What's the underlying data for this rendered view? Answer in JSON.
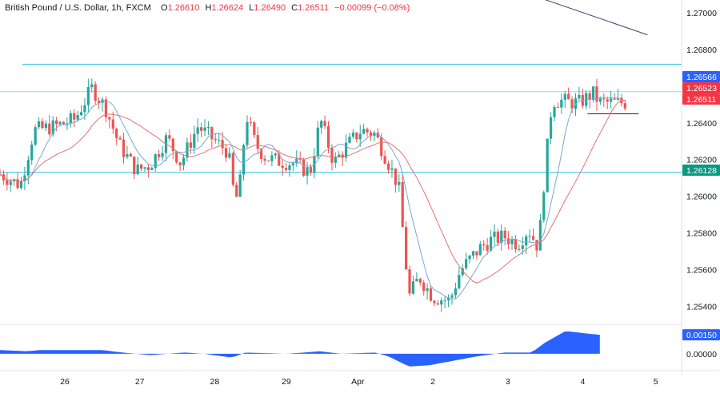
{
  "header": {
    "symbol_line": "British Pound / U.S. Dollar, 1h, FXCM",
    "open_label": "O",
    "open": "1.26610",
    "high_label": "H",
    "high": "1.26624",
    "low_label": "L",
    "low": "1.26490",
    "close_label": "C",
    "close": "1.26511",
    "change": "−0.00099 (−0.08%)"
  },
  "colors": {
    "up": "#26a69a",
    "down": "#ef5350",
    "ma_fast": "#7ea6d9",
    "ma_slow": "#e57373",
    "level_line": "#26c6da",
    "trend_line": "#3f3f6e",
    "oscillator": "#2962ff",
    "tag_blue": "#2962ff",
    "tag_red": "#f23645",
    "tag_teal": "#089981",
    "axis_text": "#131722"
  },
  "chart_data": {
    "type": "candlestick",
    "instrument": "British Pound / U.S. Dollar",
    "timeframe": "1h",
    "source": "FXCM",
    "x_ticks": [
      "26",
      "27",
      "28",
      "29",
      "Apr",
      "2",
      "3",
      "4",
      "5"
    ],
    "y_ticks": [
      "1.27000",
      "1.26800",
      "1.26400",
      "1.26200",
      "1.26000",
      "1.25800",
      "1.25600",
      "1.25400"
    ],
    "y_range": [
      1.2531,
      1.2707
    ],
    "price_tags": [
      {
        "label": "1.26566",
        "value": 1.26566,
        "color": "blue"
      },
      {
        "label": "1.26523",
        "value": 1.26523,
        "color": "red"
      },
      {
        "label": "1.26511",
        "value": 1.26511,
        "color": "red"
      },
      {
        "label": "1.26128",
        "value": 1.26128,
        "color": "teal"
      }
    ],
    "horizontal_levels": [
      1.2672,
      1.2657,
      1.2613
    ],
    "support_marker": 1.2645,
    "trendline": {
      "from": [
        0.784,
        1.27092
      ],
      "to": [
        0.95,
        1.2688
      ]
    },
    "oscillator": {
      "tick_labels": [
        "0.00150",
        "0.00000"
      ],
      "current_value": "0.00150",
      "y_range": [
        -0.0012,
        0.0022
      ]
    },
    "price_path": [
      [
        0.0,
        1.2612
      ],
      [
        0.03,
        1.2606
      ],
      [
        0.05,
        1.2636
      ],
      [
        0.08,
        1.2638
      ],
      [
        0.11,
        1.2642
      ],
      [
        0.135,
        1.2659
      ],
      [
        0.155,
        1.2648
      ],
      [
        0.175,
        1.2628
      ],
      [
        0.2,
        1.2614
      ],
      [
        0.22,
        1.2617
      ],
      [
        0.245,
        1.2632
      ],
      [
        0.265,
        1.2618
      ],
      [
        0.29,
        1.2638
      ],
      [
        0.31,
        1.2632
      ],
      [
        0.335,
        1.2624
      ],
      [
        0.345,
        1.2596
      ],
      [
        0.355,
        1.2612
      ],
      [
        0.36,
        1.2646
      ],
      [
        0.375,
        1.2628
      ],
      [
        0.39,
        1.2621
      ],
      [
        0.41,
        1.2619
      ],
      [
        0.43,
        1.2618
      ],
      [
        0.455,
        1.2613
      ],
      [
        0.47,
        1.2642
      ],
      [
        0.49,
        1.2618
      ],
      [
        0.51,
        1.2628
      ],
      [
        0.53,
        1.2636
      ],
      [
        0.55,
        1.2634
      ],
      [
        0.57,
        1.2618
      ],
      [
        0.585,
        1.2605
      ],
      [
        0.6,
        1.2545
      ],
      [
        0.615,
        1.2556
      ],
      [
        0.635,
        1.2545
      ],
      [
        0.66,
        1.2543
      ],
      [
        0.675,
        1.2559
      ],
      [
        0.69,
        1.2566
      ],
      [
        0.705,
        1.2572
      ],
      [
        0.72,
        1.2576
      ],
      [
        0.74,
        1.2578
      ],
      [
        0.76,
        1.2574
      ],
      [
        0.775,
        1.2582
      ],
      [
        0.79,
        1.2572
      ],
      [
        0.8,
        1.2616
      ],
      [
        0.81,
        1.2652
      ],
      [
        0.825,
        1.2652
      ],
      [
        0.84,
        1.2651
      ],
      [
        0.85,
        1.2651
      ],
      [
        0.87,
        1.2656
      ],
      [
        0.88,
        1.2651
      ]
    ],
    "oscillator_path": [
      [
        0.0,
        0.0003
      ],
      [
        0.04,
        0.0002
      ],
      [
        0.06,
        0.0003
      ],
      [
        0.1,
        0.0003
      ],
      [
        0.15,
        0.0003
      ],
      [
        0.18,
        0.0001
      ],
      [
        0.22,
        -0.0001
      ],
      [
        0.27,
        0.0001
      ],
      [
        0.3,
        0.0
      ],
      [
        0.34,
        -0.0003
      ],
      [
        0.36,
        0.0001
      ],
      [
        0.42,
        0.0
      ],
      [
        0.47,
        0.0002
      ],
      [
        0.5,
        0.0
      ],
      [
        0.55,
        0.0001
      ],
      [
        0.57,
        -0.0002
      ],
      [
        0.6,
        -0.001
      ],
      [
        0.63,
        -0.0009
      ],
      [
        0.66,
        -0.0006
      ],
      [
        0.7,
        -0.0002
      ],
      [
        0.74,
        0.0001
      ],
      [
        0.78,
        0.0001
      ],
      [
        0.8,
        0.0009
      ],
      [
        0.83,
        0.0018
      ],
      [
        0.86,
        0.0016
      ],
      [
        0.88,
        0.0015
      ]
    ]
  }
}
